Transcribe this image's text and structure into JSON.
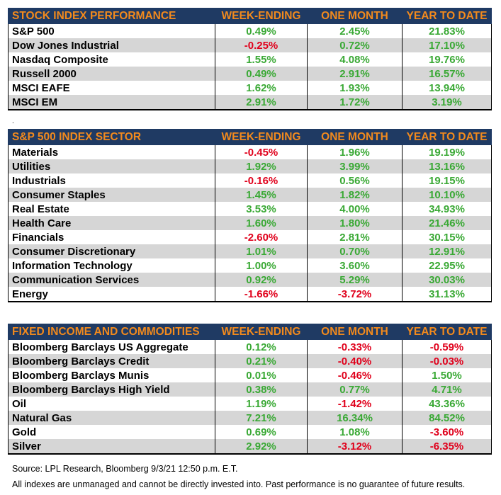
{
  "tables": [
    {
      "headers": [
        "STOCK INDEX PERFORMANCE",
        "WEEK-ENDING",
        "ONE MONTH",
        "YEAR TO DATE"
      ],
      "rows": [
        {
          "name": "S&P 500",
          "week": "0.49%",
          "month": "2.45%",
          "ytd": "21.83%"
        },
        {
          "name": "Dow Jones Industrial",
          "week": "-0.25%",
          "month": "0.72%",
          "ytd": "17.10%"
        },
        {
          "name": "Nasdaq Composite",
          "week": "1.55%",
          "month": "4.08%",
          "ytd": "19.76%"
        },
        {
          "name": "Russell 2000",
          "week": "0.49%",
          "month": "2.91%",
          "ytd": "16.57%"
        },
        {
          "name": "MSCI EAFE",
          "week": "1.62%",
          "month": "1.93%",
          "ytd": "13.94%"
        },
        {
          "name": "MSCI EM",
          "week": "2.91%",
          "month": "1.72%",
          "ytd": "3.19%"
        }
      ]
    },
    {
      "headers": [
        "S&P 500 INDEX SECTOR",
        "WEEK-ENDING",
        "ONE MONTH",
        "YEAR TO DATE"
      ],
      "rows": [
        {
          "name": "Materials",
          "week": "-0.45%",
          "month": "1.96%",
          "ytd": "19.19%"
        },
        {
          "name": "Utilities",
          "week": "1.92%",
          "month": "3.99%",
          "ytd": "13.16%"
        },
        {
          "name": "Industrials",
          "week": "-0.16%",
          "month": "0.56%",
          "ytd": "19.15%"
        },
        {
          "name": "Consumer Staples",
          "week": "1.45%",
          "month": "1.82%",
          "ytd": "10.10%"
        },
        {
          "name": "Real Estate",
          "week": "3.53%",
          "month": "4.00%",
          "ytd": "34.93%"
        },
        {
          "name": "Health Care",
          "week": "1.60%",
          "month": "1.80%",
          "ytd": "21.46%"
        },
        {
          "name": "Financials",
          "week": "-2.60%",
          "month": "2.81%",
          "ytd": "30.15%"
        },
        {
          "name": "Consumer Discretionary",
          "week": "1.01%",
          "month": "0.70%",
          "ytd": "12.91%"
        },
        {
          "name": "Information Technology",
          "week": "1.00%",
          "month": "3.60%",
          "ytd": "22.95%"
        },
        {
          "name": "Communication Services",
          "week": "0.92%",
          "month": "5.29%",
          "ytd": "30.03%"
        },
        {
          "name": "Energy",
          "week": "-1.66%",
          "month": "-3.72%",
          "ytd": "31.13%"
        }
      ]
    },
    {
      "headers": [
        "FIXED INCOME AND COMMODITIES",
        "WEEK-ENDING",
        "ONE MONTH",
        "YEAR TO DATE"
      ],
      "rows": [
        {
          "name": "Bloomberg Barclays US Aggregate",
          "week": "0.12%",
          "month": "-0.33%",
          "ytd": "-0.59%"
        },
        {
          "name": "Bloomberg Barclays Credit",
          "week": "0.21%",
          "month": "-0.40%",
          "ytd": "-0.03%"
        },
        {
          "name": "Bloomberg Barclays Munis",
          "week": "0.01%",
          "month": "-0.46%",
          "ytd": "1.50%"
        },
        {
          "name": "Bloomberg Barclays High Yield",
          "week": "0.38%",
          "month": "0.77%",
          "ytd": "4.71%"
        },
        {
          "name": "Oil",
          "week": "1.19%",
          "month": "-1.42%",
          "ytd": "43.36%"
        },
        {
          "name": "Natural Gas",
          "week": "7.21%",
          "month": "16.34%",
          "ytd": "84.52%"
        },
        {
          "name": "Gold",
          "week": "0.69%",
          "month": "1.08%",
          "ytd": "-3.60%"
        },
        {
          "name": "Silver",
          "week": "2.92%",
          "month": "-3.12%",
          "ytd": "-6.35%"
        }
      ]
    }
  ],
  "separator_mark": ".",
  "source_note": "Source: LPL Research, Bloomberg 9/3/21 12:50 p.m. E.T.",
  "disclaimer": "All indexes are unmanaged and cannot be directly invested into. Past performance is no guarantee of future results.",
  "colors": {
    "header_background": "#1f3a63",
    "header_text": "#f28a1d",
    "positive": "#3aa935",
    "negative": "#e0001b",
    "alt_row": "#d6d6d6"
  }
}
